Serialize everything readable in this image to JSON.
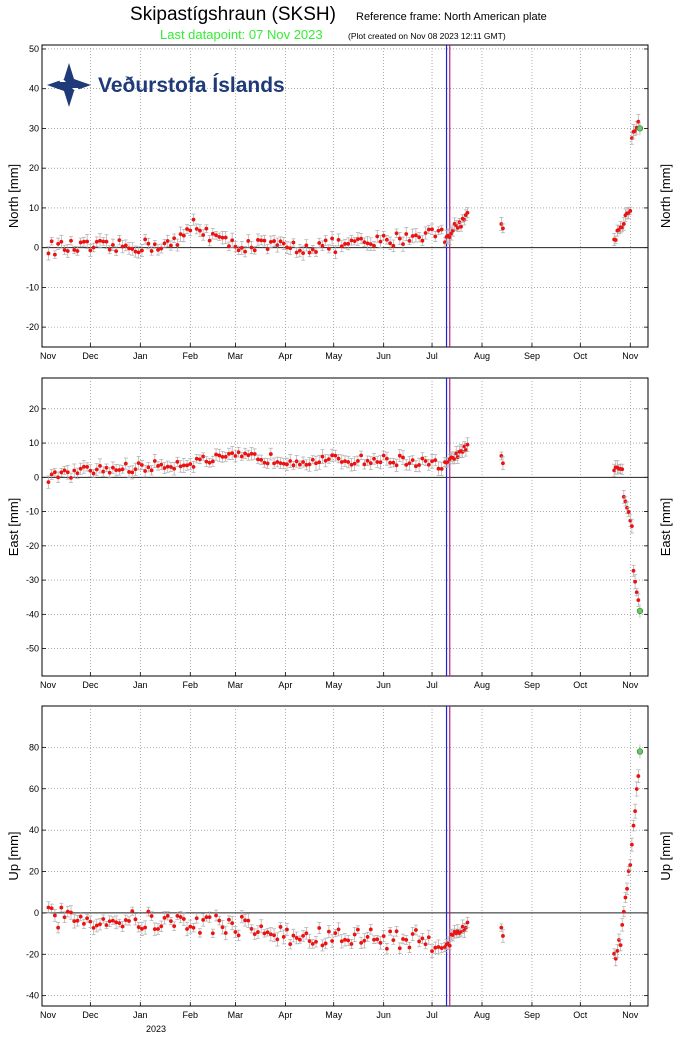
{
  "header": {
    "title": "Skipastígshraun (SKSH)",
    "reference": "Reference frame: North American plate",
    "last_datapoint": "Last datapoint: 07 Nov 2023",
    "created": "(Plot created on Nov 08 2023 12:11 GMT)"
  },
  "logo": {
    "text": "Veðurstofa Íslands",
    "icon": "vedurstofa-logo-icon",
    "color": "#1e3a78"
  },
  "year_label": "2023",
  "colors": {
    "points": "#ee1111",
    "errorbars": "#aaaaaa",
    "last_point": "#66cc66",
    "grid": "#777777",
    "vline_blue": "#2222cc",
    "vline_purple": "#aa2288",
    "zero_line": "#222222"
  },
  "chart_data": [
    {
      "type": "scatter",
      "ylabel": "North [mm]",
      "xlabel": "",
      "x_ticks": [
        "Nov",
        "Dec",
        "Jan",
        "Feb",
        "Mar",
        "Apr",
        "May",
        "Jun",
        "Jul",
        "Aug",
        "Sep",
        "Oct",
        "Nov"
      ],
      "x_range": [
        "2022-11-01",
        "2023-11-12"
      ],
      "ylim": [
        -25,
        51
      ],
      "y_ticks": [
        -20,
        -10,
        0,
        10,
        20,
        30,
        40,
        50
      ],
      "vertical_lines": [
        "2023-07-10",
        "2023-07-12"
      ],
      "grid": true,
      "segments": [
        {
          "start": "2022-11-05",
          "end": "2023-07-09",
          "base": [
            [
              0,
              0
            ],
            [
              40,
              0
            ],
            [
              80,
              1
            ],
            [
              90,
              6
            ],
            [
              110,
              1
            ],
            [
              150,
              0
            ],
            [
              200,
              1
            ],
            [
              240,
              4
            ],
            [
              250,
              2
            ]
          ],
          "jitter": 1.8,
          "step": 2
        },
        {
          "start": "2023-07-10",
          "end": "2023-07-23",
          "base": [
            [
              0,
              3
            ],
            [
              13,
              8
            ]
          ],
          "jitter": 1.2,
          "step": 1
        },
        {
          "start": "2023-08-13",
          "end": "2023-08-14",
          "base": [
            [
              0,
              6
            ],
            [
              1,
              5
            ]
          ],
          "jitter": 0.3,
          "step": 1
        },
        {
          "start": "2023-10-22",
          "end": "2023-11-01",
          "base": [
            [
              0,
              2
            ],
            [
              10,
              10
            ]
          ],
          "jitter": 1.0,
          "step": 1
        },
        {
          "start": "2023-11-02",
          "end": "2023-11-06",
          "base": [
            [
              0,
              28
            ],
            [
              4,
              31
            ]
          ],
          "jitter": 0.8,
          "step": 1
        }
      ],
      "last_point": {
        "date": "2023-11-07",
        "value": 30
      }
    },
    {
      "type": "scatter",
      "ylabel": "East [mm]",
      "xlabel": "",
      "x_ticks": [
        "Nov",
        "Dec",
        "Jan",
        "Feb",
        "Mar",
        "Apr",
        "May",
        "Jun",
        "Jul",
        "Aug",
        "Sep",
        "Oct",
        "Nov"
      ],
      "x_range": [
        "2022-11-01",
        "2023-11-12"
      ],
      "ylim": [
        -58,
        29
      ],
      "y_ticks": [
        -50,
        -40,
        -30,
        -20,
        -10,
        0,
        10,
        20
      ],
      "vertical_lines": [
        "2023-07-10",
        "2023-07-12"
      ],
      "grid": true,
      "segments": [
        {
          "start": "2022-11-05",
          "end": "2023-07-09",
          "base": [
            [
              0,
              0
            ],
            [
              25,
              2
            ],
            [
              60,
              3
            ],
            [
              120,
              6
            ],
            [
              150,
              5
            ],
            [
              180,
              5
            ],
            [
              220,
              5
            ],
            [
              250,
              3
            ]
          ],
          "jitter": 1.5,
          "step": 2
        },
        {
          "start": "2023-07-10",
          "end": "2023-07-23",
          "base": [
            [
              0,
              4
            ],
            [
              13,
              9
            ]
          ],
          "jitter": 0.8,
          "step": 1
        },
        {
          "start": "2023-08-13",
          "end": "2023-08-14",
          "base": [
            [
              0,
              6
            ],
            [
              1,
              4
            ]
          ],
          "jitter": 0.3,
          "step": 1
        },
        {
          "start": "2023-10-22",
          "end": "2023-10-27",
          "base": [
            [
              0,
              2
            ],
            [
              5,
              2
            ]
          ],
          "jitter": 1.0,
          "step": 1
        },
        {
          "start": "2023-10-28",
          "end": "2023-11-06",
          "base": [
            [
              0,
              -5
            ],
            [
              5,
              -14
            ],
            [
              6,
              -28
            ],
            [
              9,
              -36
            ]
          ],
          "jitter": 0.8,
          "step": 1
        }
      ],
      "last_point": {
        "date": "2023-11-07",
        "value": -39
      }
    },
    {
      "type": "scatter",
      "ylabel": "Up [mm]",
      "xlabel": "",
      "x_ticks": [
        "Nov",
        "Dec",
        "Jan",
        "Feb",
        "Mar",
        "Apr",
        "May",
        "Jun",
        "Jul",
        "Aug",
        "Sep",
        "Oct",
        "Nov"
      ],
      "x_range": [
        "2022-11-01",
        "2023-11-12"
      ],
      "ylim": [
        -45,
        100
      ],
      "y_ticks": [
        -40,
        -20,
        0,
        20,
        40,
        60,
        80
      ],
      "vertical_lines": [
        "2023-07-10",
        "2023-07-12"
      ],
      "grid": true,
      "segments": [
        {
          "start": "2022-11-05",
          "end": "2023-07-09",
          "base": [
            [
              0,
              -2
            ],
            [
              60,
              -4
            ],
            [
              120,
              -6
            ],
            [
              150,
              -12
            ],
            [
              200,
              -12
            ],
            [
              250,
              -14
            ]
          ],
          "jitter": 5.0,
          "step": 2
        },
        {
          "start": "2023-07-10",
          "end": "2023-07-23",
          "base": [
            [
              0,
              -15
            ],
            [
              13,
              -5
            ]
          ],
          "jitter": 3.0,
          "step": 1
        },
        {
          "start": "2023-08-13",
          "end": "2023-08-14",
          "base": [
            [
              0,
              -7
            ],
            [
              1,
              -11
            ]
          ],
          "jitter": 0.5,
          "step": 1
        },
        {
          "start": "2023-10-22",
          "end": "2023-10-26",
          "base": [
            [
              0,
              -22
            ],
            [
              4,
              -14
            ]
          ],
          "jitter": 3.0,
          "step": 1
        },
        {
          "start": "2023-10-27",
          "end": "2023-11-06",
          "base": [
            [
              0,
              -5
            ],
            [
              5,
              25
            ],
            [
              10,
              68
            ]
          ],
          "jitter": 2.0,
          "step": 1
        }
      ],
      "last_point": {
        "date": "2023-11-07",
        "value": 78
      }
    }
  ]
}
